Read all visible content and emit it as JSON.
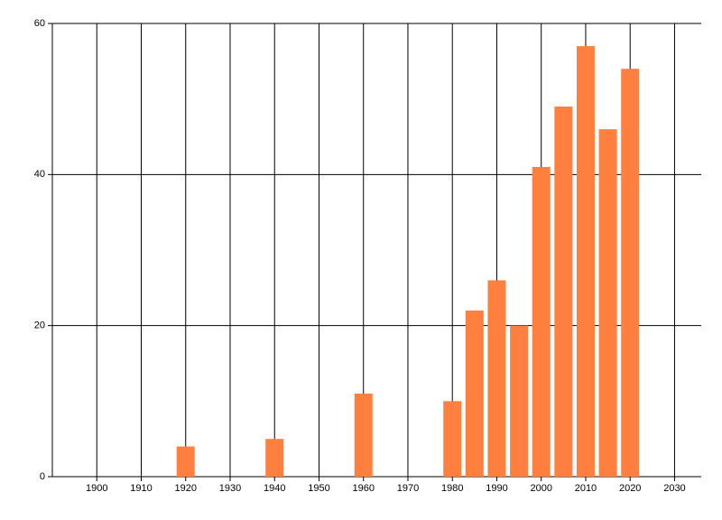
{
  "chart_data": {
    "type": "bar",
    "x": [
      1920,
      1940,
      1960,
      1980,
      1985,
      1990,
      1995,
      2000,
      2005,
      2010,
      2015,
      2020
    ],
    "values": [
      4,
      5,
      11,
      10,
      22,
      26,
      20,
      41,
      49,
      57,
      46,
      54
    ],
    "color": "#ff7f3f",
    "xlim": [
      1890,
      2036
    ],
    "xticks": [
      1900,
      1910,
      1920,
      1930,
      1940,
      1950,
      1960,
      1970,
      1980,
      1990,
      2000,
      2010,
      2020,
      2030
    ],
    "ylim": [
      0,
      60
    ],
    "yticks": [
      0,
      20,
      40,
      60
    ],
    "grid": true
  }
}
